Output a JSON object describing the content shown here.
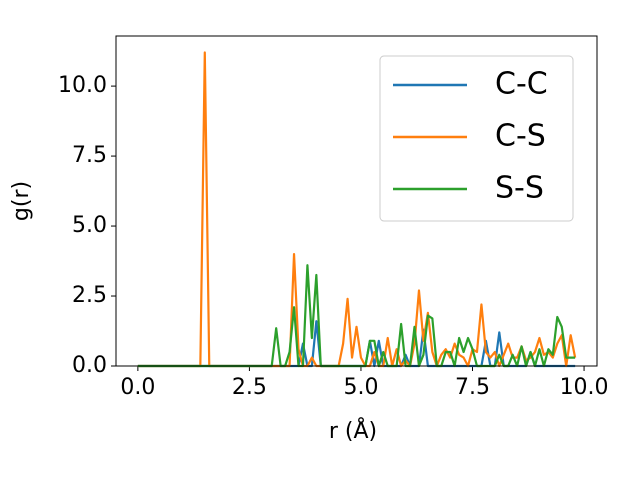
{
  "chart_data": {
    "type": "line",
    "xlabel": "r (Å)",
    "ylabel": "g(r)",
    "x": [
      0,
      0.1,
      0.2,
      0.3,
      0.4,
      0.5,
      0.6,
      0.7,
      0.8,
      0.9,
      1,
      1.1,
      1.2,
      1.3,
      1.4,
      1.5,
      1.6,
      1.7,
      1.8,
      1.9,
      2,
      2.1,
      2.2,
      2.3,
      2.4,
      2.5,
      2.6,
      2.7,
      2.8,
      2.9,
      3,
      3.1,
      3.2,
      3.3,
      3.4,
      3.5,
      3.6,
      3.7,
      3.8,
      3.9,
      4,
      4.1,
      4.2,
      4.3,
      4.4,
      4.5,
      4.6,
      4.7,
      4.8,
      4.9,
      5,
      5.1,
      5.2,
      5.3,
      5.4,
      5.5,
      5.6,
      5.7,
      5.8,
      5.9,
      6,
      6.1,
      6.2,
      6.3,
      6.4,
      6.5,
      6.6,
      6.7,
      6.8,
      6.9,
      7,
      7.1,
      7.2,
      7.3,
      7.4,
      7.5,
      7.6,
      7.7,
      7.8,
      7.9,
      8,
      8.1,
      8.2,
      8.3,
      8.4,
      8.5,
      8.6,
      8.7,
      8.8,
      8.9,
      9,
      9.1,
      9.2,
      9.3,
      9.4,
      9.5,
      9.6,
      9.7,
      9.8
    ],
    "series": [
      {
        "name": "C-C",
        "color": "#1f77b4",
        "values": [
          0,
          0,
          0,
          0,
          0,
          0,
          0,
          0,
          0,
          0,
          0,
          0,
          0,
          0,
          0,
          0,
          0,
          0,
          0,
          0,
          0,
          0,
          0,
          0,
          0,
          0,
          0,
          0,
          0,
          0,
          0,
          0,
          0,
          0,
          0,
          0,
          0,
          0.8,
          0,
          0,
          1.6,
          0,
          0,
          0,
          0,
          0,
          0,
          0,
          0,
          0,
          0,
          0,
          0.9,
          0,
          0.9,
          0,
          0,
          0,
          0,
          0,
          0.4,
          0,
          0,
          0,
          1.3,
          0,
          0,
          0,
          0,
          0,
          0,
          0,
          0,
          0,
          0,
          0,
          0,
          0,
          0.9,
          0,
          0,
          1.2,
          0,
          0,
          0,
          0,
          0,
          0,
          0.5,
          0,
          0,
          0,
          0,
          0,
          0,
          0,
          0,
          0,
          0
        ]
      },
      {
        "name": "C-S",
        "color": "#ff7f0e",
        "values": [
          0,
          0,
          0,
          0,
          0,
          0,
          0,
          0,
          0,
          0,
          0,
          0,
          0,
          0,
          0,
          11.2,
          0,
          0,
          0,
          0,
          0,
          0,
          0,
          0,
          0,
          0,
          0,
          0,
          0,
          0,
          0,
          0,
          0,
          0,
          0,
          4.0,
          0.6,
          0,
          0,
          0.3,
          0,
          0,
          0,
          0,
          0,
          0,
          0.8,
          2.4,
          0.3,
          1.4,
          0.3,
          0,
          0,
          0.5,
          0,
          0,
          1.0,
          0,
          0.6,
          0,
          0.2,
          0,
          0.8,
          2.7,
          0.9,
          1.9,
          0.5,
          0,
          0.4,
          0.6,
          0.3,
          0.8,
          0.4,
          0.3,
          0,
          0.6,
          0.5,
          2.2,
          0.5,
          0.3,
          0.5,
          0,
          0.4,
          0.8,
          0.3,
          0.3,
          0.7,
          0.2,
          0.3,
          0.5,
          1.0,
          0.4,
          0.5,
          0.3,
          0.8,
          1.1,
          0,
          1.1,
          0.3
        ]
      },
      {
        "name": "S-S",
        "color": "#2ca02c",
        "values": [
          0,
          0,
          0,
          0,
          0,
          0,
          0,
          0,
          0,
          0,
          0,
          0,
          0,
          0,
          0,
          0,
          0,
          0,
          0,
          0,
          0,
          0,
          0,
          0,
          0,
          0,
          0,
          0,
          0,
          0,
          0,
          1.35,
          0,
          0,
          0.5,
          2.1,
          0,
          0,
          3.6,
          1.0,
          3.25,
          0,
          0,
          0,
          0,
          0,
          0,
          0,
          0,
          0,
          0,
          0,
          0.9,
          0.9,
          0,
          0.5,
          0,
          0,
          0,
          1.5,
          0,
          0,
          1.4,
          0,
          0.4,
          1.8,
          1.7,
          0,
          0,
          0.5,
          0.5,
          0,
          1.0,
          0.5,
          1.0,
          0.6,
          0,
          0,
          0,
          0,
          0,
          0.4,
          0,
          0,
          0.4,
          0,
          0.7,
          0,
          0.5,
          0,
          0.6,
          0,
          0.6,
          0.4,
          1.75,
          1.4,
          0.3,
          0.3,
          0.3
        ]
      }
    ],
    "xlim": [
      -0.49,
      10.29
    ],
    "ylim": [
      0,
      11.79
    ],
    "xticks": [
      {
        "value": 0,
        "label": "0.0"
      },
      2.5,
      {
        "value": 5,
        "label": "5.0"
      },
      7.5,
      {
        "value": 10,
        "label": "10.0"
      }
    ],
    "yticks": [
      {
        "value": 0,
        "label": "0.0"
      },
      2.5,
      {
        "value": 5,
        "label": "5.0"
      },
      7.5,
      {
        "value": 10,
        "label": "10.0"
      }
    ],
    "legend": "upper right"
  }
}
